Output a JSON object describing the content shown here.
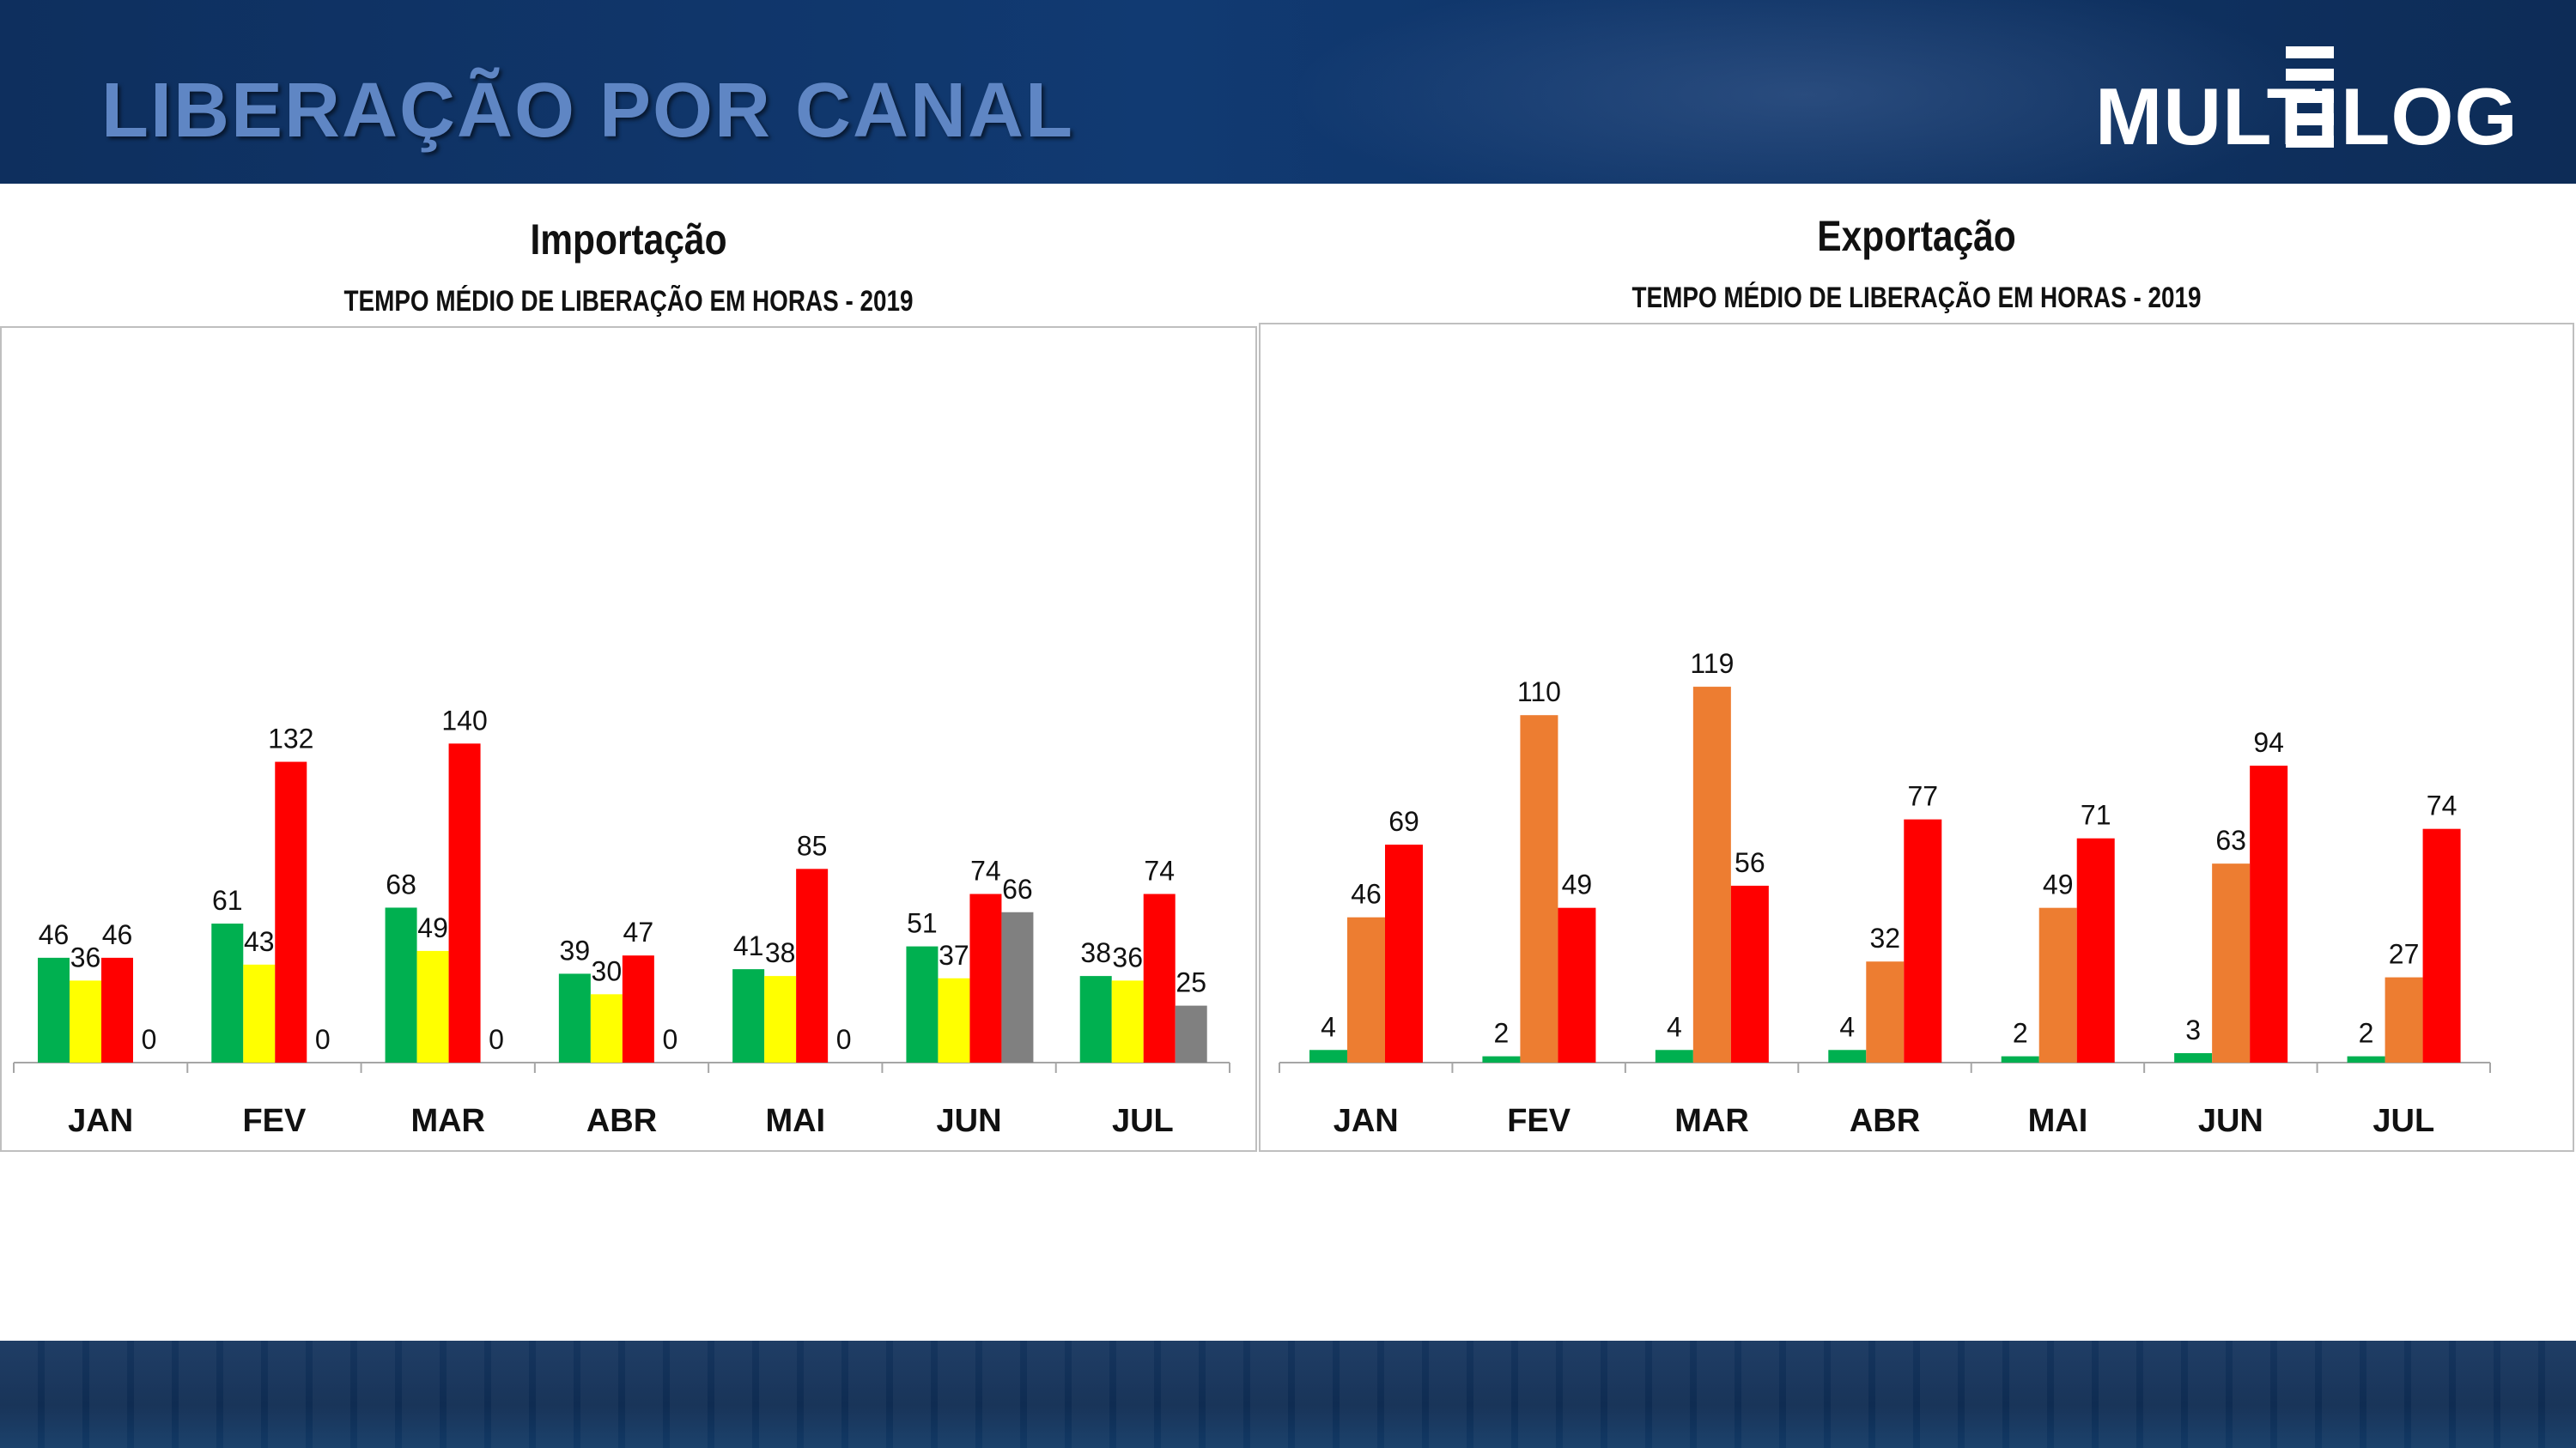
{
  "header": {
    "title": "LIBERAÇÃO POR CANAL"
  },
  "logo": {
    "left_text": "MULTI",
    "right_text": "LOG"
  },
  "chart_data": [
    {
      "type": "bar",
      "title": "Importação",
      "subtitle": "TEMPO MÉDIO DE LIBERAÇÃO EM HORAS - 2019",
      "categories": [
        "JAN",
        "FEV",
        "MAR",
        "ABR",
        "MAI",
        "JUN",
        "JUL"
      ],
      "ylim": [
        0,
        150
      ],
      "grid": false,
      "legend": "none",
      "series": [
        {
          "name": "Verde",
          "color": "#00b050",
          "values": [
            46,
            61,
            68,
            39,
            41,
            51,
            38
          ]
        },
        {
          "name": "Amarelo",
          "color": "#ffff00",
          "values": [
            36,
            43,
            49,
            30,
            38,
            37,
            36
          ]
        },
        {
          "name": "Vermelho",
          "color": "#ff0000",
          "values": [
            46,
            132,
            140,
            47,
            85,
            74,
            74
          ]
        },
        {
          "name": "Cinza",
          "color": "#808080",
          "values": [
            0,
            0,
            0,
            0,
            0,
            66,
            25
          ]
        }
      ]
    },
    {
      "type": "bar",
      "title": "Exportação",
      "subtitle": "TEMPO MÉDIO DE LIBERAÇÃO EM HORAS - 2019",
      "categories": [
        "JAN",
        "FEV",
        "MAR",
        "ABR",
        "MAI",
        "JUN",
        "JUL"
      ],
      "ylim": [
        0,
        130
      ],
      "grid": false,
      "legend": "none",
      "series": [
        {
          "name": "Verde",
          "color": "#00b050",
          "values": [
            4,
            2,
            4,
            4,
            2,
            3,
            2
          ]
        },
        {
          "name": "Laranja",
          "color": "#ed7d31",
          "values": [
            46,
            110,
            119,
            32,
            49,
            63,
            27
          ]
        },
        {
          "name": "Vermelho",
          "color": "#ff0000",
          "values": [
            69,
            49,
            56,
            77,
            71,
            94,
            74
          ]
        }
      ]
    }
  ]
}
